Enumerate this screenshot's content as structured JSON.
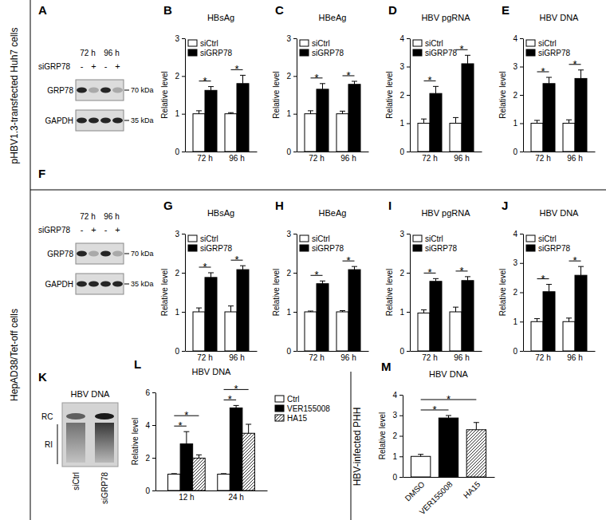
{
  "row_labels": [
    "pHBV1.3-transfected Huh7 cells",
    "HepAD38/Tet-off  cells",
    "HBV-infected PHH"
  ],
  "blots": [
    {
      "panel_label": "A",
      "time_labels": [
        "72 h",
        "96 h"
      ],
      "treatment": "siGRP78",
      "signs": [
        "-",
        "+",
        "-",
        "+"
      ],
      "rows": [
        {
          "name": "GRP78",
          "size": "70 kDa"
        },
        {
          "name": "GAPDH",
          "size": "35 kDa"
        }
      ]
    },
    {
      "panel_label": "F",
      "time_labels": [
        "72 h",
        "96 h"
      ],
      "treatment": "siGRP78",
      "signs": [
        "-",
        "+",
        "-",
        "+"
      ],
      "rows": [
        {
          "name": "GRP78",
          "size": "70 kDa"
        },
        {
          "name": "GAPDH",
          "size": "35 kDa"
        }
      ]
    },
    {
      "panel_label": "K",
      "title": "HBV DNA",
      "band_labels": [
        "RC",
        "RI"
      ],
      "lanes": [
        "siCtrl",
        "siGRP78"
      ]
    }
  ],
  "chart_data": [
    {
      "panel_label": "B",
      "type": "bar",
      "title": "HBsAg",
      "y_label": "Relative level",
      "categories": [
        "72 h",
        "96 h"
      ],
      "series": [
        {
          "name": "siCtrl",
          "color": "#ffffff",
          "values": [
            1,
            1
          ],
          "errors": [
            0.08,
            0.03
          ]
        },
        {
          "name": "siGRP78",
          "color": "#000000",
          "values": [
            1.62,
            1.8
          ],
          "errors": [
            0.1,
            0.22
          ]
        }
      ],
      "ylim": [
        0,
        3
      ],
      "yticks": [
        0,
        1,
        2,
        3
      ],
      "legend": "upper left",
      "significance": [
        {
          "text": "*",
          "category": "72 h",
          "pair": [
            "siCtrl",
            "siGRP78"
          ]
        },
        {
          "text": "*",
          "category": "96 h",
          "pair": [
            "siCtrl",
            "siGRP78"
          ]
        }
      ]
    },
    {
      "panel_label": "C",
      "type": "bar",
      "title": "HBeAg",
      "y_label": "Relative level",
      "categories": [
        "72 h",
        "96 h"
      ],
      "series": [
        {
          "name": "siCtrl",
          "color": "#ffffff",
          "values": [
            1,
            1
          ],
          "errors": [
            0.08,
            0.07
          ]
        },
        {
          "name": "siGRP78",
          "color": "#000000",
          "values": [
            1.65,
            1.78
          ],
          "errors": [
            0.15,
            0.08
          ]
        }
      ],
      "ylim": [
        0,
        3
      ],
      "yticks": [
        0,
        1,
        2,
        3
      ],
      "legend": "upper left",
      "significance": [
        {
          "text": "*",
          "category": "72 h",
          "pair": [
            "siCtrl",
            "siGRP78"
          ]
        },
        {
          "text": "*",
          "category": "96 h",
          "pair": [
            "siCtrl",
            "siGRP78"
          ]
        }
      ]
    },
    {
      "panel_label": "D",
      "type": "bar",
      "title": "HBV pgRNA",
      "y_label": "Relative level",
      "categories": [
        "72 h",
        "96 h"
      ],
      "series": [
        {
          "name": "siCtrl",
          "color": "#ffffff",
          "values": [
            1,
            1
          ],
          "errors": [
            0.15,
            0.2
          ]
        },
        {
          "name": "siGRP78",
          "color": "#000000",
          "values": [
            2.05,
            3.1
          ],
          "errors": [
            0.25,
            0.3
          ]
        }
      ],
      "ylim": [
        0,
        4
      ],
      "yticks": [
        0,
        1,
        2,
        3,
        4
      ],
      "legend": "upper left",
      "significance": [
        {
          "text": "*",
          "category": "72 h",
          "pair": [
            "siCtrl",
            "siGRP78"
          ]
        },
        {
          "text": "*",
          "category": "96 h",
          "pair": [
            "siCtrl",
            "siGRP78"
          ]
        }
      ]
    },
    {
      "panel_label": "E",
      "type": "bar",
      "title": "HBV DNA",
      "y_label": "Relative level",
      "categories": [
        "72 h",
        "96 h"
      ],
      "series": [
        {
          "name": "siCtrl",
          "color": "#ffffff",
          "values": [
            1,
            1
          ],
          "errors": [
            0.1,
            0.12
          ]
        },
        {
          "name": "siGRP78",
          "color": "#000000",
          "values": [
            2.4,
            2.58
          ],
          "errors": [
            0.22,
            0.3
          ]
        }
      ],
      "ylim": [
        0,
        4
      ],
      "yticks": [
        0,
        1,
        2,
        3,
        4
      ],
      "legend": "upper left",
      "significance": [
        {
          "text": "*",
          "category": "72 h",
          "pair": [
            "siCtrl",
            "siGRP78"
          ]
        },
        {
          "text": "*",
          "category": "96 h",
          "pair": [
            "siCtrl",
            "siGRP78"
          ]
        }
      ]
    },
    {
      "panel_label": "G",
      "type": "bar",
      "title": "HBsAg",
      "y_label": "Relative level",
      "categories": [
        "72 h",
        "96 h"
      ],
      "series": [
        {
          "name": "siCtrl",
          "color": "#ffffff",
          "values": [
            1,
            1
          ],
          "errors": [
            0.1,
            0.15
          ]
        },
        {
          "name": "siGRP78",
          "color": "#000000",
          "values": [
            1.88,
            2.08
          ],
          "errors": [
            0.12,
            0.1
          ]
        }
      ],
      "ylim": [
        0,
        3
      ],
      "yticks": [
        0,
        1,
        2,
        3
      ],
      "legend": "upper left",
      "significance": [
        {
          "text": "*",
          "category": "72 h",
          "pair": [
            "siCtrl",
            "siGRP78"
          ]
        },
        {
          "text": "*",
          "category": "96 h",
          "pair": [
            "siCtrl",
            "siGRP78"
          ]
        }
      ]
    },
    {
      "panel_label": "H",
      "type": "bar",
      "title": "HBeAg",
      "y_label": "Relative level",
      "categories": [
        "72 h",
        "96 h"
      ],
      "series": [
        {
          "name": "siCtrl",
          "color": "#ffffff",
          "values": [
            1,
            1
          ],
          "errors": [
            0.02,
            0.03
          ]
        },
        {
          "name": "siGRP78",
          "color": "#000000",
          "values": [
            1.72,
            2.08
          ],
          "errors": [
            0.07,
            0.08
          ]
        }
      ],
      "ylim": [
        0,
        3
      ],
      "yticks": [
        0,
        1,
        2,
        3
      ],
      "legend": "upper left",
      "significance": [
        {
          "text": "*",
          "category": "72 h",
          "pair": [
            "siCtrl",
            "siGRP78"
          ]
        },
        {
          "text": "*",
          "category": "96 h",
          "pair": [
            "siCtrl",
            "siGRP78"
          ]
        }
      ]
    },
    {
      "panel_label": "I",
      "type": "bar",
      "title": "HBV pgRNA",
      "y_label": "Relative level",
      "categories": [
        "72 h",
        "96 h"
      ],
      "series": [
        {
          "name": "siCtrl",
          "color": "#ffffff",
          "values": [
            0.97,
            1
          ],
          "errors": [
            0.08,
            0.12
          ]
        },
        {
          "name": "siGRP78",
          "color": "#000000",
          "values": [
            1.78,
            1.8
          ],
          "errors": [
            0.07,
            0.1
          ]
        }
      ],
      "ylim": [
        0,
        3
      ],
      "yticks": [
        0,
        1,
        2,
        3
      ],
      "legend": "upper left",
      "significance": [
        {
          "text": "*",
          "category": "72 h",
          "pair": [
            "siCtrl",
            "siGRP78"
          ]
        },
        {
          "text": "*",
          "category": "96 h",
          "pair": [
            "siCtrl",
            "siGRP78"
          ]
        }
      ]
    },
    {
      "panel_label": "J",
      "type": "bar",
      "title": "HBV DNA",
      "y_label": "Relative level",
      "categories": [
        "72 h",
        "96 h"
      ],
      "series": [
        {
          "name": "siCtrl",
          "color": "#ffffff",
          "values": [
            1,
            1
          ],
          "errors": [
            0.1,
            0.12
          ]
        },
        {
          "name": "siGRP78",
          "color": "#000000",
          "values": [
            2.02,
            2.58
          ],
          "errors": [
            0.25,
            0.3
          ]
        }
      ],
      "ylim": [
        0,
        4
      ],
      "yticks": [
        0,
        1,
        2,
        3,
        4
      ],
      "legend": "upper left",
      "significance": [
        {
          "text": "*",
          "category": "72 h",
          "pair": [
            "siCtrl",
            "siGRP78"
          ]
        },
        {
          "text": "*",
          "category": "96 h",
          "pair": [
            "siCtrl",
            "siGRP78"
          ]
        }
      ]
    },
    {
      "panel_label": "L",
      "type": "bar",
      "title": "HBV DNA",
      "y_label": "Relative level",
      "categories": [
        "12 h",
        "24 h"
      ],
      "series": [
        {
          "name": "Ctrl",
          "color": "#ffffff",
          "values": [
            1,
            1
          ],
          "errors": [
            0.03,
            0.03
          ]
        },
        {
          "name": "VER155008",
          "color": "#000000",
          "values": [
            2.85,
            5.05
          ],
          "errors": [
            0.75,
            0.15
          ]
        },
        {
          "name": "HA15",
          "color": "#ffffff",
          "marker": "hatch",
          "values": [
            1.98,
            3.5
          ],
          "errors": [
            0.2,
            0.55
          ]
        }
      ],
      "ylim": [
        0,
        6
      ],
      "yticks": [
        0,
        2,
        4,
        6
      ],
      "legend": "right",
      "significance": [
        {
          "text": "*",
          "category": "12 h",
          "pair": [
            "Ctrl",
            "VER155008"
          ]
        },
        {
          "text": "*",
          "category": "12 h",
          "pair": [
            "Ctrl",
            "HA15"
          ]
        },
        {
          "text": "*",
          "category": "24 h",
          "pair": [
            "Ctrl",
            "VER155008"
          ]
        },
        {
          "text": "*",
          "category": "24 h",
          "pair": [
            "Ctrl",
            "HA15"
          ]
        }
      ]
    },
    {
      "panel_label": "M",
      "type": "bar",
      "title": "HBV DNA",
      "y_label": "Relative level",
      "categories": [
        "DMSO",
        "VER155008",
        "HA15"
      ],
      "stacked": true,
      "series": [
        {
          "color": "#ffffff",
          "values": [
            1,
            null,
            null
          ],
          "errors": [
            0.1,
            null,
            null
          ]
        },
        {
          "color": "#000000",
          "values": [
            null,
            2.87,
            null
          ],
          "errors": [
            null,
            0.12,
            null
          ]
        },
        {
          "color": "#ffffff",
          "marker": "hatch",
          "values": [
            null,
            null,
            2.3
          ],
          "errors": [
            null,
            null,
            0.35
          ]
        }
      ],
      "ylim": [
        0,
        4
      ],
      "yticks": [
        0,
        1,
        2,
        3,
        4
      ],
      "significance": [
        {
          "text": "*",
          "pair": [
            "DMSO",
            "VER155008"
          ]
        },
        {
          "text": "*",
          "pair": [
            "DMSO",
            "HA15"
          ]
        }
      ]
    }
  ]
}
